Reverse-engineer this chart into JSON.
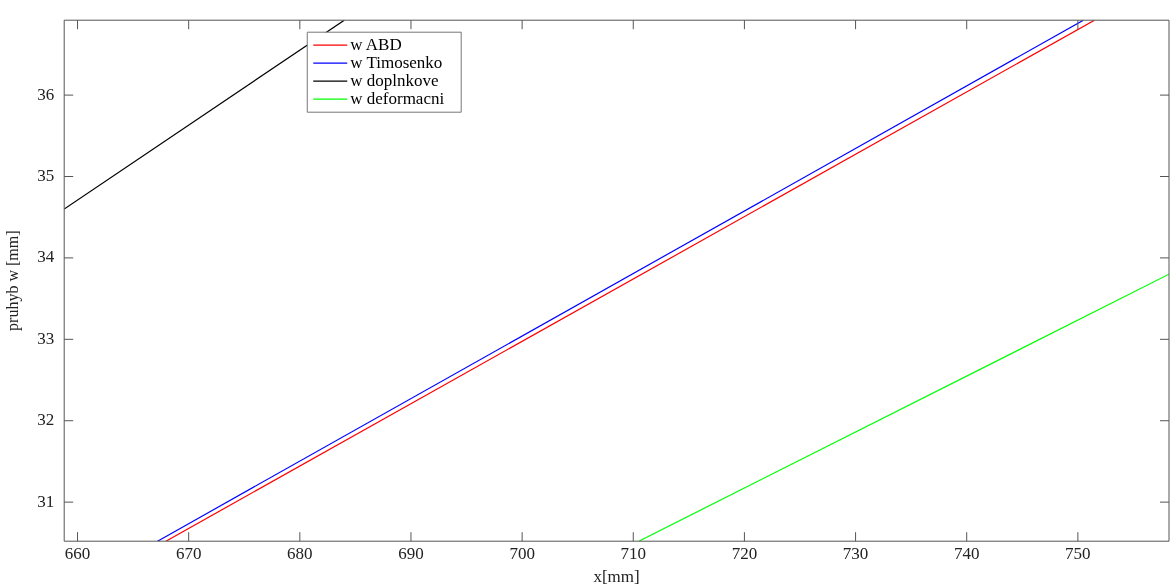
{
  "chart_data": {
    "type": "line",
    "xlabel": "x[mm]",
    "ylabel": "pruhyb w [mm]",
    "xlim": [
      658.8,
      758.2
    ],
    "ylim": [
      30.52,
      36.92
    ],
    "xticks": [
      660,
      670,
      680,
      690,
      700,
      710,
      720,
      730,
      740,
      750
    ],
    "yticks": [
      31,
      32,
      33,
      34,
      35,
      36
    ],
    "grid": false,
    "legend": "top",
    "marker": "none",
    "line_style": "solid",
    "series": [
      {
        "name": "w ABD",
        "color": "#ff0000",
        "x": [
          667.95,
          751.5
        ],
        "values": [
          30.52,
          36.92
        ]
      },
      {
        "name": "w Timosenko",
        "color": "#0000ff",
        "x": [
          667.2,
          750.5
        ],
        "values": [
          30.52,
          36.92
        ]
      },
      {
        "name": "w doplnkove",
        "color": "#000000",
        "x": [
          658.8,
          684
        ],
        "values": [
          34.6,
          36.92
        ]
      },
      {
        "name": "w deformacni",
        "color": "#00ff00",
        "x": [
          710.5,
          758.2
        ],
        "values": [
          30.52,
          33.8
        ]
      }
    ]
  }
}
